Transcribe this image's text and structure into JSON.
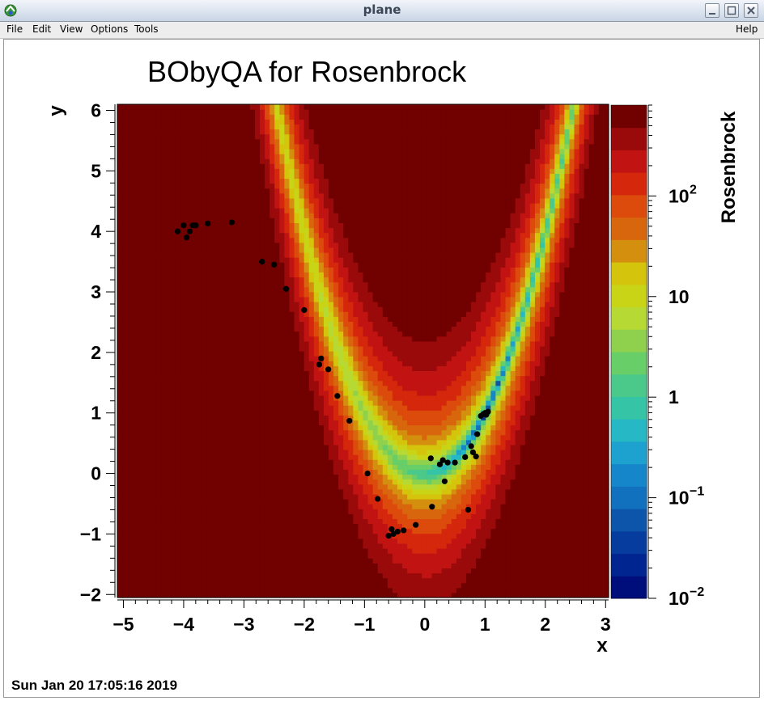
{
  "window": {
    "title": "plane"
  },
  "menubar": {
    "file": "File",
    "edit": "Edit",
    "view": "View",
    "options": "Options",
    "tools": "Tools",
    "help": "Help"
  },
  "plot": {
    "title": "BObyQA for Rosenbrock",
    "timestamp": "Sun Jan 20 17:05:16 2019"
  },
  "chart_data": {
    "type": "heatmap",
    "title": "BObyQA for Rosenbrock",
    "xlabel": "x",
    "ylabel": "y",
    "zlabel": "Rosenbrock",
    "xlim": [
      -5.1,
      3.05
    ],
    "ylim": [
      -2.05,
      6.1
    ],
    "x_ticks": [
      {
        "v": -5,
        "label": "−5"
      },
      {
        "v": -4,
        "label": "−4"
      },
      {
        "v": -3,
        "label": "−3"
      },
      {
        "v": -2,
        "label": "−2"
      },
      {
        "v": -1,
        "label": "−1"
      },
      {
        "v": 0,
        "label": "0"
      },
      {
        "v": 1,
        "label": "1"
      },
      {
        "v": 2,
        "label": "2"
      },
      {
        "v": 3,
        "label": "3"
      }
    ],
    "y_ticks": [
      {
        "v": -2,
        "label": "−2"
      },
      {
        "v": -1,
        "label": "−1"
      },
      {
        "v": 0,
        "label": "0"
      },
      {
        "v": 1,
        "label": "1"
      },
      {
        "v": 2,
        "label": "2"
      },
      {
        "v": 3,
        "label": "3"
      },
      {
        "v": 4,
        "label": "4"
      },
      {
        "v": 5,
        "label": "5"
      },
      {
        "v": 6,
        "label": "6"
      }
    ],
    "z_scale": "log",
    "z_range": [
      0.01,
      800
    ],
    "z_ticks": [
      {
        "v": 100,
        "base": "10",
        "exp": "2"
      },
      {
        "v": 10,
        "base": "10",
        "exp": ""
      },
      {
        "v": 1,
        "base": "1",
        "exp": ""
      },
      {
        "v": 0.1,
        "base": "10",
        "exp": "−1"
      },
      {
        "v": 0.01,
        "base": "10",
        "exp": "−2"
      }
    ],
    "palette": [
      "#000e7b",
      "#002590",
      "#063c9e",
      "#0d55aa",
      "#1171bf",
      "#1586c9",
      "#1da1cf",
      "#26b8c4",
      "#35c4a5",
      "#4ac98a",
      "#67ce68",
      "#8fd14c",
      "#b6da33",
      "#cad417",
      "#d4c40c",
      "#d48f0e",
      "#d8660d",
      "#dc4a0c",
      "#d5270c",
      "#c21313",
      "#9b0a0a",
      "#710000"
    ],
    "function": "Rosenbrock",
    "points": [
      [
        -4.1,
        4.0
      ],
      [
        -4.0,
        4.1
      ],
      [
        -3.95,
        3.9
      ],
      [
        -3.9,
        4.0
      ],
      [
        -3.85,
        4.1
      ],
      [
        -3.8,
        4.1
      ],
      [
        -3.6,
        4.13
      ],
      [
        -3.2,
        4.15
      ],
      [
        -2.7,
        3.5
      ],
      [
        -2.5,
        3.45
      ],
      [
        -2.3,
        3.05
      ],
      [
        -2.0,
        2.7
      ],
      [
        -1.75,
        1.8
      ],
      [
        -1.72,
        1.9
      ],
      [
        -1.6,
        1.72
      ],
      [
        -1.45,
        1.28
      ],
      [
        -1.25,
        0.87
      ],
      [
        -0.95,
        0.0
      ],
      [
        -0.78,
        -0.42
      ],
      [
        -0.6,
        -1.03
      ],
      [
        -0.55,
        -0.92
      ],
      [
        -0.52,
        -1.0
      ],
      [
        -0.45,
        -0.96
      ],
      [
        -0.35,
        -0.94
      ],
      [
        -0.15,
        -0.85
      ],
      [
        0.1,
        0.25
      ],
      [
        0.12,
        -0.55
      ],
      [
        0.25,
        0.15
      ],
      [
        0.3,
        0.22
      ],
      [
        0.33,
        -0.13
      ],
      [
        0.38,
        0.18
      ],
      [
        0.5,
        0.18
      ],
      [
        0.67,
        0.27
      ],
      [
        0.72,
        -0.6
      ],
      [
        0.77,
        0.45
      ],
      [
        0.8,
        0.35
      ],
      [
        0.85,
        0.28
      ],
      [
        0.87,
        0.65
      ],
      [
        0.93,
        0.95
      ],
      [
        0.97,
        0.98
      ],
      [
        1.0,
        1.0
      ],
      [
        1.02,
        0.97
      ],
      [
        1.05,
        1.02
      ]
    ]
  }
}
